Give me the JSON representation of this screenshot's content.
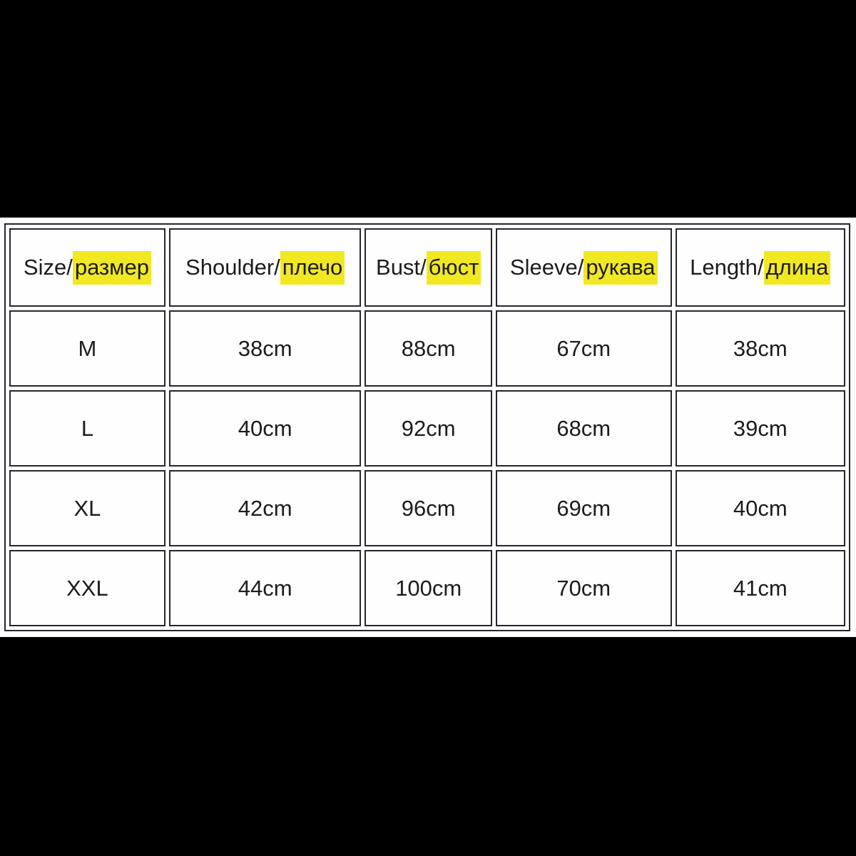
{
  "chart_data": {
    "type": "table",
    "columns": [
      "Size/размер",
      "Shoulder/плечо",
      "Bust/бюст",
      "Sleeve/рукава",
      "Length/длина"
    ],
    "rows": [
      [
        "M",
        "38cm",
        "88cm",
        "67cm",
        "38cm"
      ],
      [
        "L",
        "40cm",
        "92cm",
        "68cm",
        "39cm"
      ],
      [
        "XL",
        "42cm",
        "96cm",
        "69cm",
        "40cm"
      ],
      [
        "XXL",
        "44cm",
        "100cm",
        "70cm",
        "41cm"
      ]
    ],
    "layout_hints": {
      "header_highlight": "russian words highlighted yellow",
      "grid": "double-line bordered cells with spacing",
      "letterbox": "black bars above and below white table band"
    }
  },
  "header": {
    "cells": [
      {
        "en": "Size/",
        "ru": "размер"
      },
      {
        "en": "Shoulder/",
        "ru": "плечо"
      },
      {
        "en": "Bust/",
        "ru": "бюст"
      },
      {
        "en": "Sleeve/",
        "ru": "рукава"
      },
      {
        "en": "Length/",
        "ru": "длина"
      }
    ]
  },
  "colors": {
    "page_bg": "#000000",
    "panel_bg": "#fdfdfd",
    "cell_bg": "#fefefe",
    "border": "#26262e",
    "text": "#1c1c1c",
    "highlight": "#f2e822"
  }
}
